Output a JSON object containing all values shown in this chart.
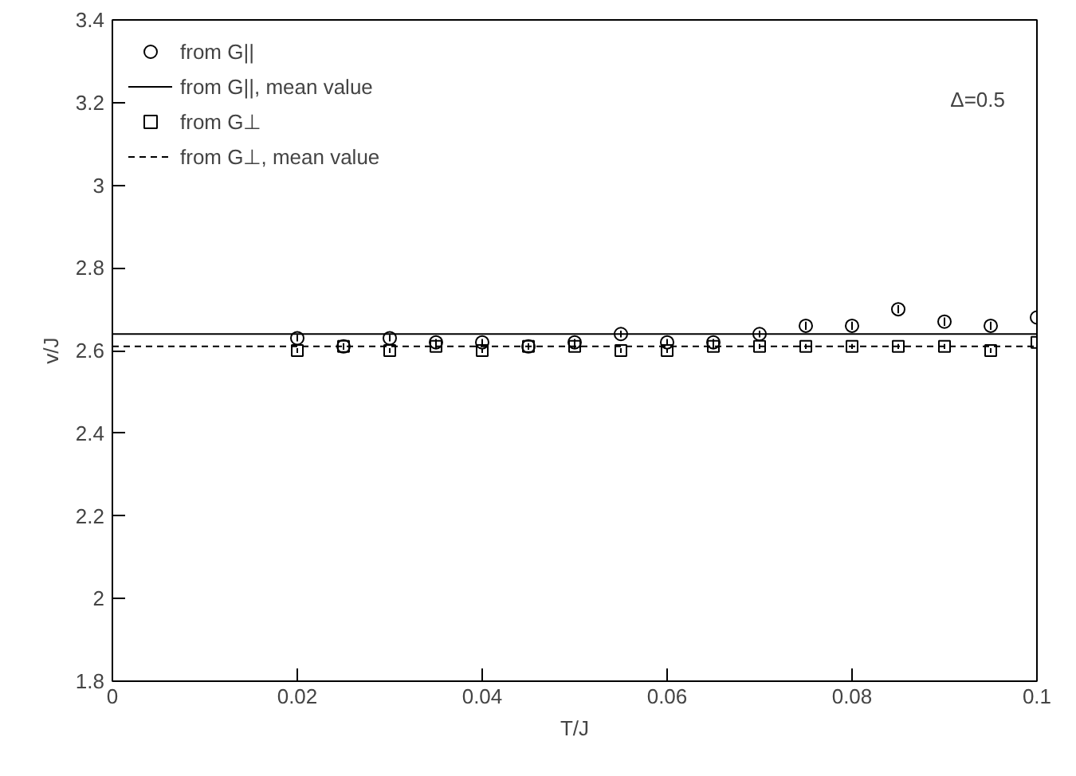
{
  "chart_data": {
    "type": "scatter",
    "xlabel": "T/J",
    "ylabel": "v/J",
    "x": [
      0.02,
      0.025,
      0.03,
      0.035,
      0.04,
      0.045,
      0.05,
      0.055,
      0.06,
      0.065,
      0.07,
      0.075,
      0.08,
      0.085,
      0.09,
      0.095,
      0.1
    ],
    "series": [
      {
        "name": "from G||",
        "color": "#000000",
        "marker": "circle",
        "values": [
          2.63,
          2.61,
          2.63,
          2.62,
          2.62,
          2.61,
          2.62,
          2.64,
          2.62,
          2.62,
          2.64,
          2.66,
          2.66,
          2.7,
          2.67,
          2.66,
          2.68
        ],
        "errors": [
          0.008,
          0.008,
          0.008,
          0.008,
          0.008,
          0.008,
          0.008,
          0.008,
          0.008,
          0.008,
          0.008,
          0.01,
          0.01,
          0.01,
          0.01,
          0.01,
          0.01
        ]
      },
      {
        "name": "from G⊥",
        "color": "#000000",
        "marker": "square",
        "values": [
          2.6,
          2.61,
          2.6,
          2.61,
          2.6,
          2.61,
          2.61,
          2.6,
          2.6,
          2.61,
          2.61,
          2.61,
          2.61,
          2.61,
          2.61,
          2.6,
          2.62
        ],
        "errors": [
          0.006,
          0.006,
          0.006,
          0.006,
          0.006,
          0.006,
          0.006,
          0.006,
          0.006,
          0.006,
          0.006,
          0.006,
          0.006,
          0.006,
          0.006,
          0.006,
          0.006
        ]
      }
    ],
    "ref_lines": [
      {
        "axis": "y",
        "value": 2.64,
        "label": "from G||, mean value",
        "line_style": "solid",
        "color": "#000000"
      },
      {
        "axis": "y",
        "value": 2.61,
        "label": "from G⊥, mean value",
        "line_style": "dashed",
        "color": "#000000"
      }
    ],
    "annotations": [
      "Δ=0.5"
    ],
    "xlim": [
      0,
      0.1
    ],
    "xticks": [
      0,
      0.02,
      0.04,
      0.06,
      0.08,
      0.1
    ],
    "ylim": [
      1.8,
      3.4
    ],
    "yticks": [
      1.8,
      2,
      2.2,
      2.4,
      2.6,
      2.8,
      3,
      3.2,
      3.4
    ],
    "grid": false,
    "legend": "top left"
  }
}
